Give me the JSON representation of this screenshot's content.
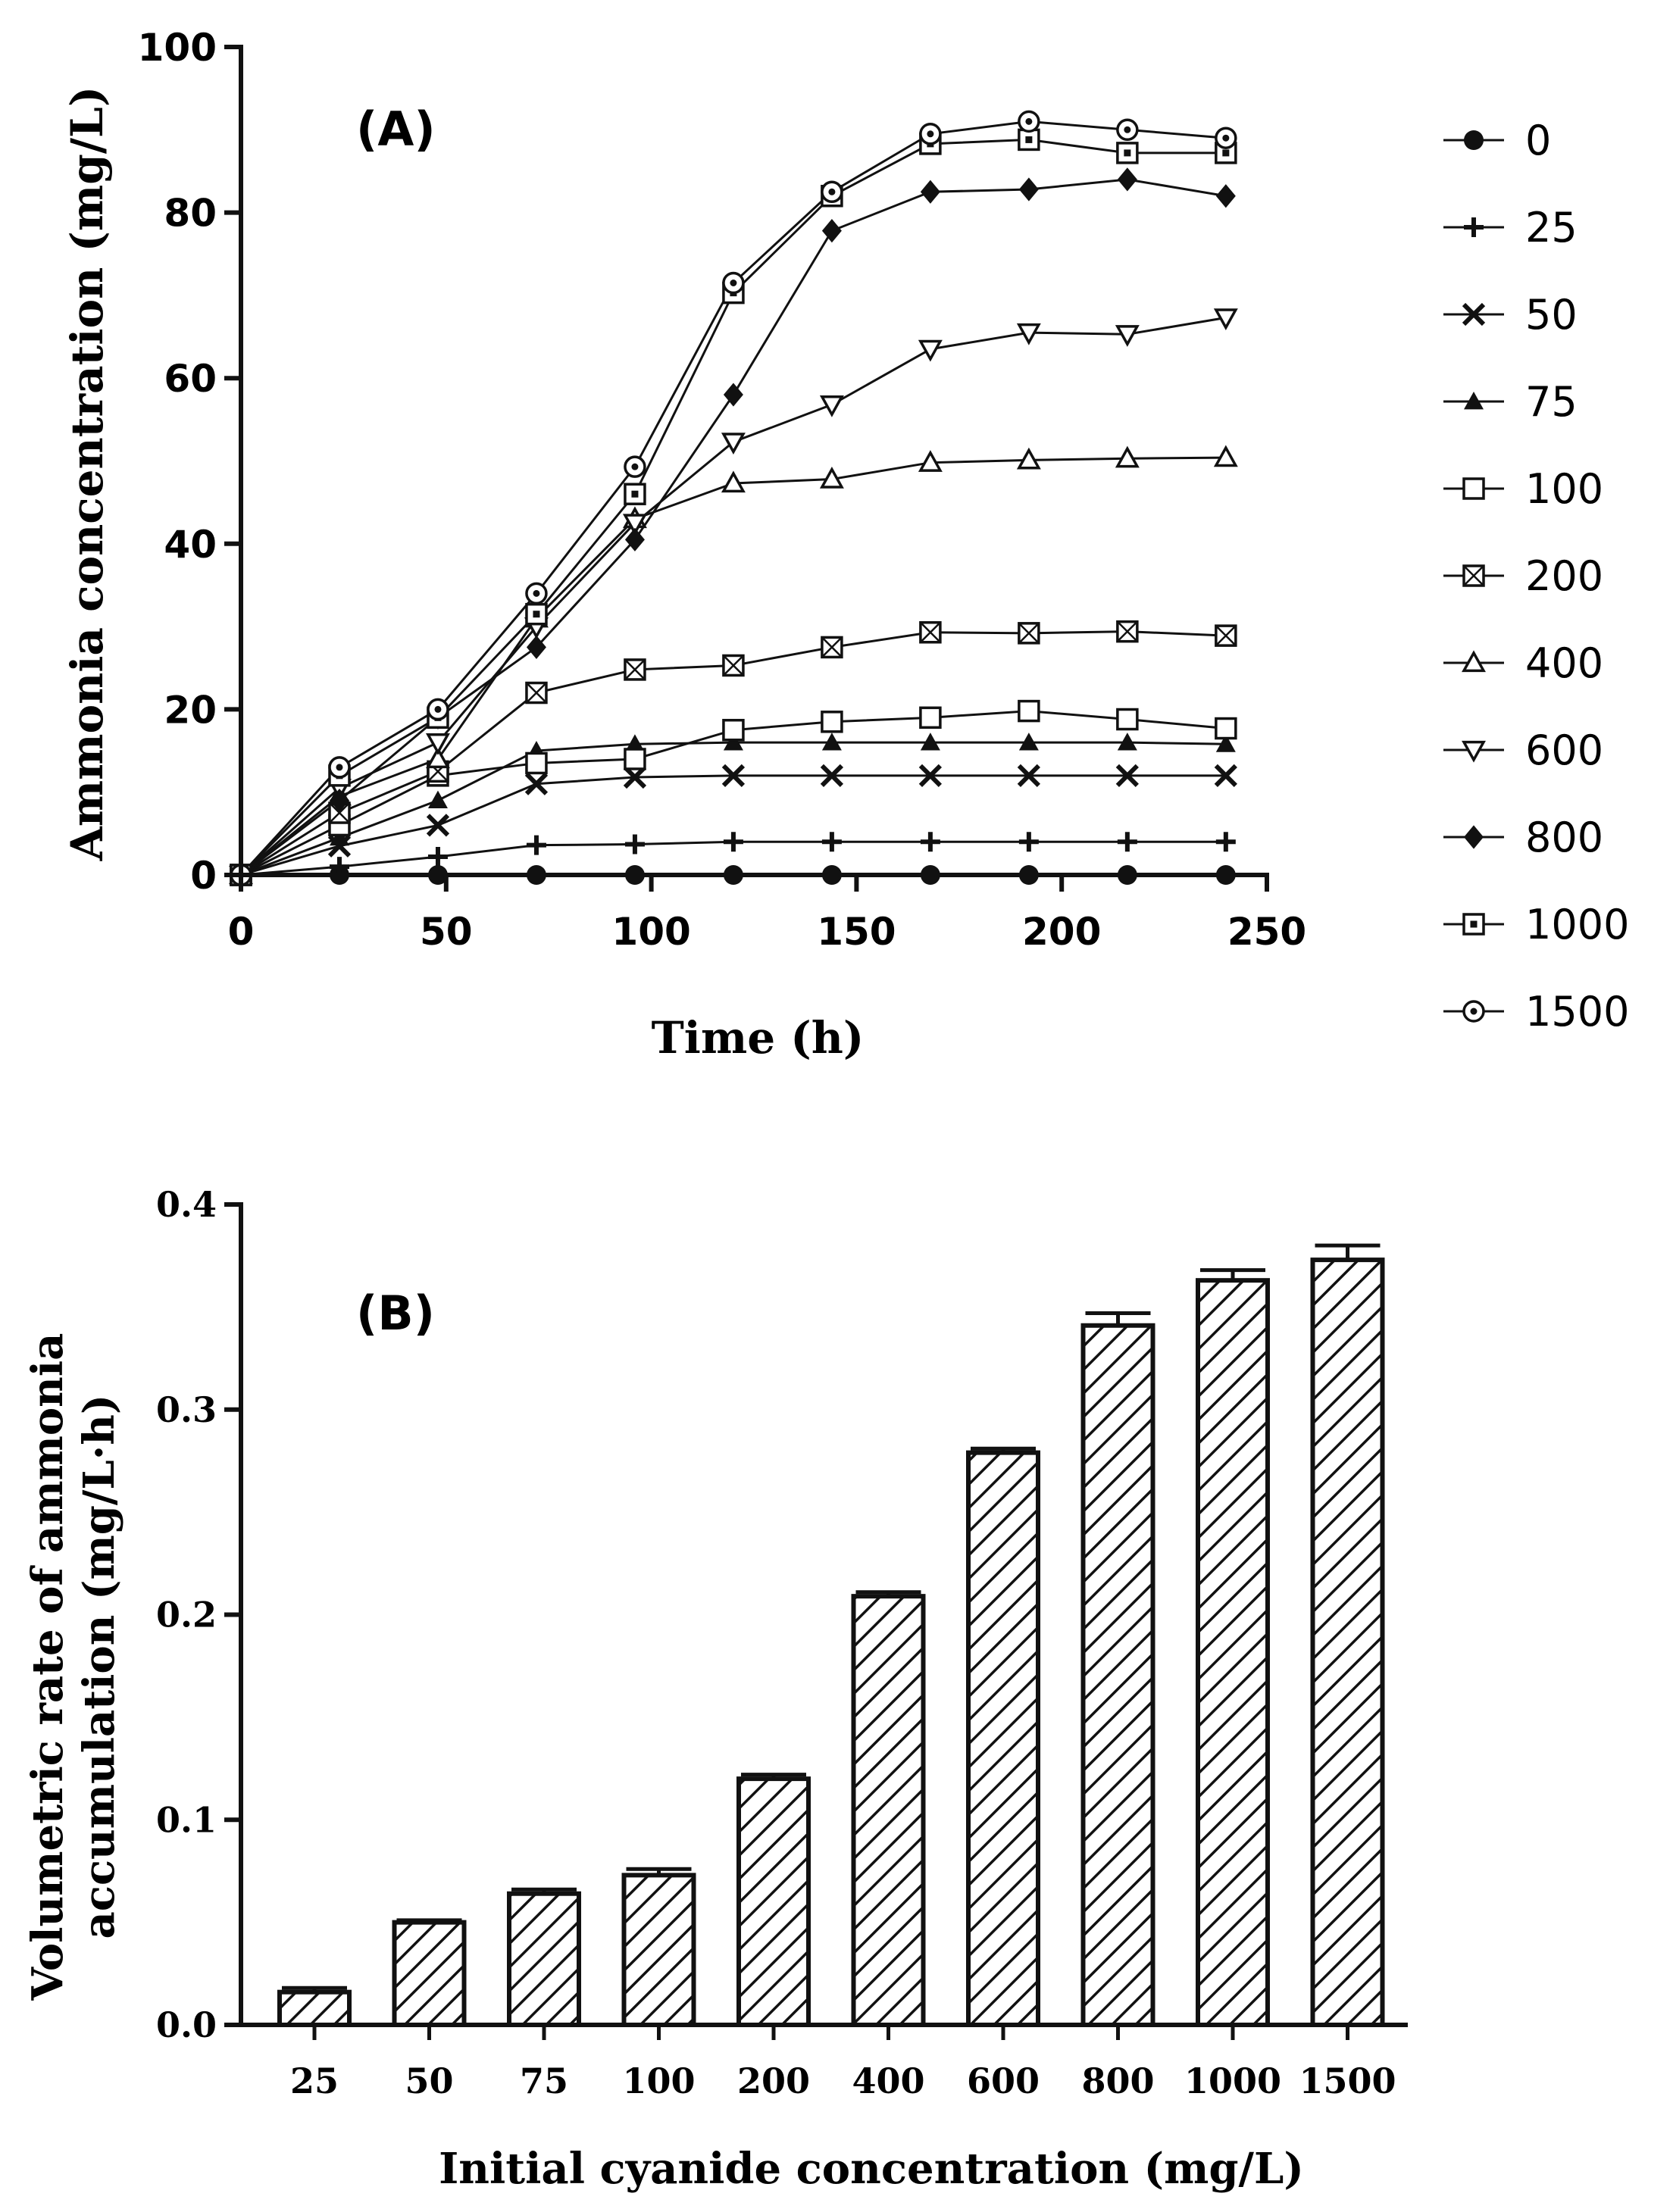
{
  "chart_data": [
    {
      "type": "line",
      "panel_label": "(A)",
      "xlabel": "Time (h)",
      "ylabel": "Ammonia concentration  (mg/L)",
      "xlim": [
        0,
        250
      ],
      "ylim": [
        0,
        100
      ],
      "xticks": [
        0,
        50,
        100,
        150,
        200,
        250
      ],
      "yticks": [
        0,
        20,
        40,
        60,
        80,
        100
      ],
      "x": [
        0,
        24,
        48,
        72,
        96,
        120,
        144,
        168,
        192,
        216,
        240
      ],
      "legend_position": "right",
      "series": [
        {
          "name": "0",
          "marker": "circle-filled",
          "values": [
            0,
            0,
            0,
            0,
            0,
            0,
            0,
            0,
            0,
            0,
            0
          ]
        },
        {
          "name": "25",
          "marker": "plus",
          "values": [
            0,
            1,
            2.2,
            3.6,
            3.7,
            4,
            4,
            4,
            4,
            4,
            4
          ]
        },
        {
          "name": "50",
          "marker": "cross",
          "values": [
            0,
            3.5,
            6,
            11,
            11.8,
            12,
            12,
            12,
            12,
            12,
            12
          ]
        },
        {
          "name": "75",
          "marker": "triangle-up-filled",
          "values": [
            0,
            4.5,
            9,
            15,
            15.8,
            16,
            16,
            16,
            16,
            16,
            15.8
          ]
        },
        {
          "name": "100",
          "marker": "square-open",
          "values": [
            0,
            6,
            12,
            13.5,
            14,
            17.5,
            18.5,
            19,
            19.8,
            18.8,
            17.7
          ]
        },
        {
          "name": "200",
          "marker": "square-crossed",
          "values": [
            0,
            7.5,
            12.5,
            22,
            24.8,
            25.3,
            27.5,
            29.3,
            29.2,
            29.4,
            28.9
          ]
        },
        {
          "name": "400",
          "marker": "triangle-up-open",
          "values": [
            0,
            9.5,
            14,
            31,
            43,
            47.3,
            47.8,
            49.8,
            50.1,
            50.3,
            50.4
          ]
        },
        {
          "name": "600",
          "marker": "triangle-down-open",
          "values": [
            0,
            10.5,
            16,
            30,
            42.5,
            52.3,
            56.8,
            63.5,
            65.5,
            65.3,
            67.3
          ]
        },
        {
          "name": "800",
          "marker": "diamond-filled",
          "values": [
            0,
            9,
            19,
            27.5,
            40.5,
            58,
            77.8,
            82.5,
            82.8,
            84,
            82
          ]
        },
        {
          "name": "1000",
          "marker": "square-dot",
          "values": [
            0,
            12,
            19,
            31.5,
            46,
            70.3,
            82,
            88.3,
            88.8,
            87.2,
            87.2
          ]
        },
        {
          "name": "1500",
          "marker": "circle-dot",
          "values": [
            0,
            13,
            20,
            34,
            49.3,
            71.5,
            82.5,
            89.5,
            91,
            90,
            89
          ]
        }
      ]
    },
    {
      "type": "bar",
      "panel_label": "(B)",
      "xlabel": "Initial cyanide concentration (mg/L)",
      "ylabel_lines": [
        "Volumetric rate of ammonia",
        "accumulation (mg/L·h)"
      ],
      "ylim": [
        0,
        0.4
      ],
      "yticks": [
        "0.0",
        "0.1",
        "0.2",
        "0.3",
        "0.4"
      ],
      "categories": [
        "25",
        "50",
        "75",
        "100",
        "200",
        "400",
        "600",
        "800",
        "1000",
        "1500"
      ],
      "values": [
        0.016,
        0.05,
        0.064,
        0.073,
        0.12,
        0.209,
        0.279,
        0.341,
        0.363,
        0.373
      ],
      "errors": [
        0.002,
        0.001,
        0.002,
        0.003,
        0.002,
        0.002,
        0.002,
        0.006,
        0.005,
        0.007
      ],
      "fill": "diagonal-hatch"
    }
  ]
}
